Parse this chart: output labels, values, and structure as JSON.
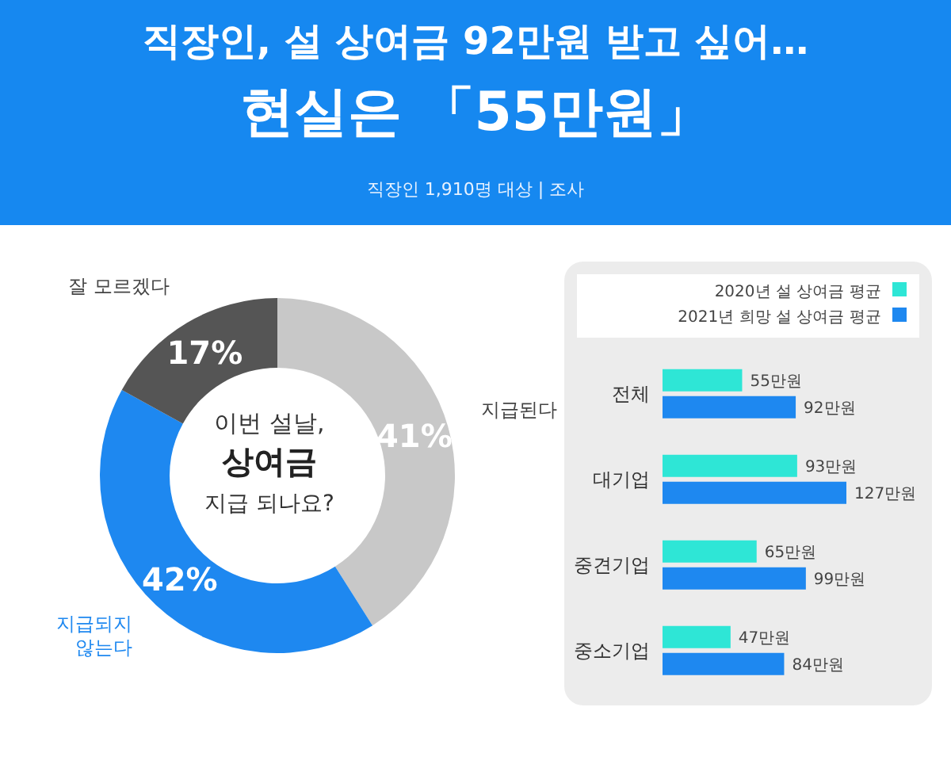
{
  "chart_data": [
    {
      "type": "donut",
      "title": "직장인, 설 상여금 92만원 받고 싶어…",
      "subtitle": "현실은 「55만원」",
      "annotations": [
        "직장인 1,910명 대상 | 조사",
        "이번 설날, 상여금 지급 되나요?"
      ],
      "categories": [
        "지급된다",
        "지급되지 않는다",
        "잘 모르겠다"
      ],
      "values": [
        41,
        42,
        17
      ],
      "colors": [
        "#c8c8c8",
        "#1e88f0",
        "#555555"
      ],
      "value_labels": [
        "41%",
        "42%",
        "17%"
      ]
    },
    {
      "type": "bar",
      "orientation": "horizontal",
      "categories": [
        "전체",
        "대기업",
        "중견기업",
        "중소기업"
      ],
      "tick_labels": "y",
      "legend": "top right",
      "series": [
        {
          "name": "2020년 설 상여금 평균",
          "color": "#2ee6d6",
          "values": [
            55,
            93,
            65,
            47
          ],
          "value_labels": [
            "55만원",
            "93만원",
            "65만원",
            "47만원"
          ]
        },
        {
          "name": "2021년 희망 설 상여금 평균",
          "color": "#1e88f0",
          "values": [
            92,
            127,
            99,
            84
          ],
          "value_labels": [
            "92만원",
            "127만원",
            "99만원",
            "84만원"
          ]
        }
      ]
    }
  ]
}
